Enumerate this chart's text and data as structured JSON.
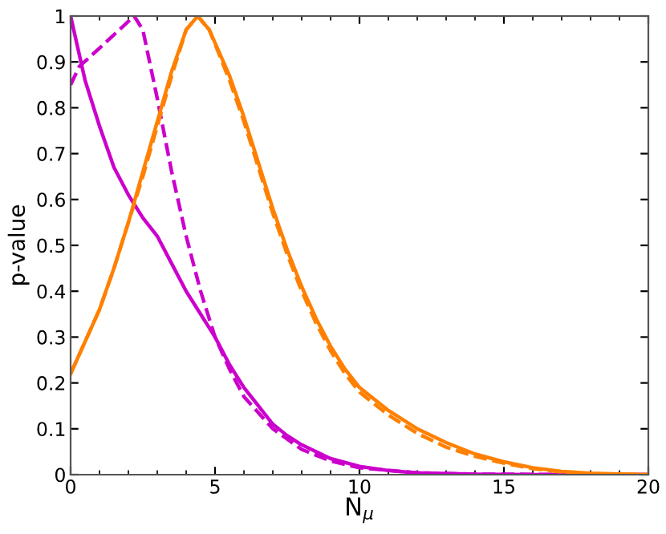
{
  "chart_data": {
    "type": "line",
    "xlabel": "N$_{μ}$",
    "ylabel": "p-value",
    "xlim": [
      0,
      20
    ],
    "ylim": [
      0,
      1
    ],
    "xticks": [
      0,
      5,
      10,
      15,
      20
    ],
    "yticks": [
      0,
      0.1,
      0.2,
      0.3,
      0.4,
      0.5,
      0.6,
      0.7,
      0.8,
      0.9,
      1
    ],
    "grid": false,
    "marker": "none",
    "series": [
      {
        "color": "#cc00cc",
        "line_style": "solid",
        "x": [
          0,
          0.5,
          1,
          1.5,
          2,
          2.5,
          3,
          3.5,
          4,
          4.5,
          5,
          5.5,
          6,
          6.5,
          7,
          7.5,
          8,
          9,
          10,
          11,
          12,
          14,
          16,
          20
        ],
        "values": [
          1,
          0.86,
          0.76,
          0.67,
          0.61,
          0.56,
          0.52,
          0.46,
          0.4,
          0.35,
          0.3,
          0.24,
          0.19,
          0.15,
          0.11,
          0.085,
          0.065,
          0.035,
          0.018,
          0.009,
          0.004,
          0.001,
          0,
          0
        ]
      },
      {
        "color": "#cc00cc",
        "line_style": "dashed",
        "x": [
          0,
          0.3,
          1,
          2.2,
          2.5,
          3,
          3.5,
          4,
          4.5,
          5,
          5.5,
          6,
          7,
          8,
          9,
          10,
          12,
          14,
          20
        ],
        "values": [
          0.85,
          0.89,
          0.93,
          1,
          0.97,
          0.82,
          0.66,
          0.52,
          0.4,
          0.3,
          0.23,
          0.17,
          0.1,
          0.055,
          0.03,
          0.015,
          0.004,
          0.001,
          0
        ]
      },
      {
        "color": "#ff8000",
        "line_style": "solid",
        "x": [
          0,
          0.5,
          1,
          1.5,
          2,
          2.5,
          3,
          3.5,
          4,
          4.4,
          4.8,
          5.5,
          6,
          6.5,
          7,
          7.5,
          8,
          8.5,
          9,
          9.5,
          10,
          11,
          12,
          13,
          14,
          15,
          16,
          17,
          18,
          20
        ],
        "values": [
          0.22,
          0.29,
          0.36,
          0.45,
          0.55,
          0.66,
          0.77,
          0.88,
          0.97,
          1,
          0.97,
          0.87,
          0.78,
          0.68,
          0.58,
          0.49,
          0.41,
          0.34,
          0.28,
          0.23,
          0.19,
          0.14,
          0.1,
          0.07,
          0.045,
          0.028,
          0.015,
          0.007,
          0.003,
          0
        ]
      },
      {
        "color": "#ff8000",
        "line_style": "dashed",
        "x": [
          0,
          0.5,
          1,
          1.5,
          2,
          2.5,
          3,
          3.5,
          4,
          4.4,
          4.8,
          5.5,
          6,
          6.5,
          7,
          7.5,
          8,
          8.5,
          9,
          9.5,
          10,
          11,
          12,
          13,
          14,
          15,
          16,
          17,
          18,
          20
        ],
        "values": [
          0.22,
          0.29,
          0.36,
          0.45,
          0.55,
          0.65,
          0.76,
          0.87,
          0.97,
          1,
          0.97,
          0.86,
          0.77,
          0.67,
          0.57,
          0.48,
          0.4,
          0.33,
          0.27,
          0.22,
          0.18,
          0.13,
          0.09,
          0.06,
          0.04,
          0.025,
          0.013,
          0.006,
          0.002,
          0
        ]
      }
    ]
  }
}
